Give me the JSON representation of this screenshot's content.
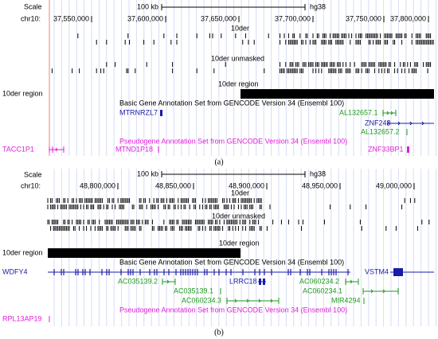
{
  "panels": [
    {
      "scale_label": "Scale",
      "chrom_label": "chr10:",
      "scale_bar": "100 kb",
      "assembly": "hg38",
      "positions": [
        "37,550,000",
        "37,600,000",
        "37,650,000",
        "37,700,000",
        "37,750,000",
        "37,800,000"
      ],
      "track_der": "10der",
      "track_der_unmasked": "10der unmasked",
      "region_title": "10der region",
      "region_label": "10der region",
      "basic_title": "Basic Gene Annotation Set from GENCODE Version 34 (Ensembl 100)",
      "genes": [
        "MTRNRZL7",
        "AL132657.1",
        "ZNF248",
        "AL132657.2"
      ],
      "pseudo_title": "Pseudogene Annotation Set from GENCODE Version 34 (Ensembl 100)",
      "pseudogenes": [
        "TACC1P1",
        "MTND1P18",
        "ZNF33BP1"
      ],
      "caption": "(a)"
    },
    {
      "scale_label": "Scale",
      "chrom_label": "chr10:",
      "scale_bar": "100 kb",
      "assembly": "hg38",
      "positions": [
        "48,800,000",
        "48,850,000",
        "48,900,000",
        "48,950,000",
        "49,000,000"
      ],
      "track_der": "10der",
      "track_der_unmasked": "10der unmasked",
      "region_title": "10der region",
      "region_label": "10der region",
      "basic_title": "Basic Gene Annotation Set from GENCODE Version 34 (Ensembl 100)",
      "genes": [
        "WDFY4",
        "LRRC18",
        "VSTM4",
        "AC035139.2",
        "AC035139.1",
        "AC060234.3",
        "AC060234.2",
        "AC060234.1",
        "MIR4294"
      ],
      "pseudo_title": "Pseudogene Annotation Set from GENCODE Version 34 (Ensembl 100)",
      "pseudogenes": [
        "RPL13AP19"
      ],
      "caption": "(b)"
    }
  ]
}
